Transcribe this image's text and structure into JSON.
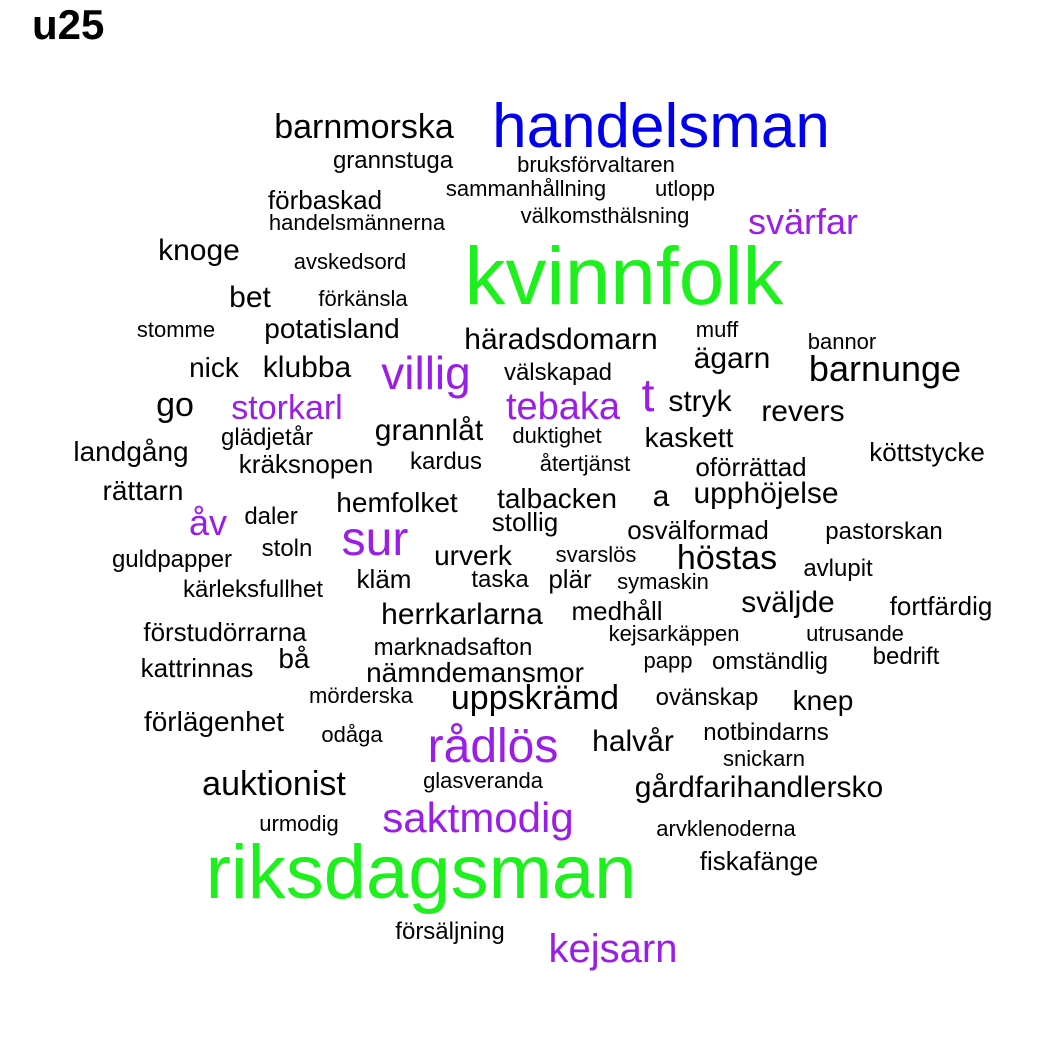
{
  "title": "u25",
  "colors": {
    "black": "#000000",
    "blue": "#0000ee",
    "green": "#1ef01e",
    "purple": "#9b1de8"
  },
  "words": [
    {
      "text": "barnmorska",
      "color": "black"
    },
    {
      "text": "handelsman",
      "color": "blue"
    },
    {
      "text": "grannstuga",
      "color": "black"
    },
    {
      "text": "bruksförvaltaren",
      "color": "black"
    },
    {
      "text": "sammanhållning",
      "color": "black"
    },
    {
      "text": "utlopp",
      "color": "black"
    },
    {
      "text": "förbaskad",
      "color": "black"
    },
    {
      "text": "handelsmännerna",
      "color": "black"
    },
    {
      "text": "välkomsthälsning",
      "color": "black"
    },
    {
      "text": "svärfar",
      "color": "purple"
    },
    {
      "text": "knoge",
      "color": "black"
    },
    {
      "text": "avskedsord",
      "color": "black"
    },
    {
      "text": "kvinnfolk",
      "color": "green"
    },
    {
      "text": "bet",
      "color": "black"
    },
    {
      "text": "förkänsla",
      "color": "black"
    },
    {
      "text": "stomme",
      "color": "black"
    },
    {
      "text": "potatisland",
      "color": "black"
    },
    {
      "text": "häradsdomarn",
      "color": "black"
    },
    {
      "text": "muff",
      "color": "black"
    },
    {
      "text": "bannor",
      "color": "black"
    },
    {
      "text": "ägarn",
      "color": "black"
    },
    {
      "text": "nick",
      "color": "black"
    },
    {
      "text": "klubba",
      "color": "black"
    },
    {
      "text": "villig",
      "color": "purple"
    },
    {
      "text": "välskapad",
      "color": "black"
    },
    {
      "text": "barnunge",
      "color": "black"
    },
    {
      "text": "t",
      "color": "purple"
    },
    {
      "text": "go",
      "color": "black"
    },
    {
      "text": "storkarl",
      "color": "purple"
    },
    {
      "text": "tebaka",
      "color": "purple"
    },
    {
      "text": "stryk",
      "color": "black"
    },
    {
      "text": "revers",
      "color": "black"
    },
    {
      "text": "grannlåt",
      "color": "black"
    },
    {
      "text": "glädjetår",
      "color": "black"
    },
    {
      "text": "duktighet",
      "color": "black"
    },
    {
      "text": "kaskett",
      "color": "black"
    },
    {
      "text": "landgång",
      "color": "black"
    },
    {
      "text": "köttstycke",
      "color": "black"
    },
    {
      "text": "kräksnopen",
      "color": "black"
    },
    {
      "text": "kardus",
      "color": "black"
    },
    {
      "text": "återtjänst",
      "color": "black"
    },
    {
      "text": "oförrättad",
      "color": "black"
    },
    {
      "text": "rättarn",
      "color": "black"
    },
    {
      "text": "hemfolket",
      "color": "black"
    },
    {
      "text": "talbacken",
      "color": "black"
    },
    {
      "text": "a",
      "color": "black"
    },
    {
      "text": "upphöjelse",
      "color": "black"
    },
    {
      "text": "åv",
      "color": "purple"
    },
    {
      "text": "daler",
      "color": "black"
    },
    {
      "text": "sur",
      "color": "purple"
    },
    {
      "text": "stollig",
      "color": "black"
    },
    {
      "text": "osvälformad",
      "color": "black"
    },
    {
      "text": "pastorskan",
      "color": "black"
    },
    {
      "text": "guldpapper",
      "color": "black"
    },
    {
      "text": "stoln",
      "color": "black"
    },
    {
      "text": "urverk",
      "color": "black"
    },
    {
      "text": "svarslös",
      "color": "black"
    },
    {
      "text": "höstas",
      "color": "black"
    },
    {
      "text": "avlupit",
      "color": "black"
    },
    {
      "text": "kläm",
      "color": "black"
    },
    {
      "text": "taska",
      "color": "black"
    },
    {
      "text": "plär",
      "color": "black"
    },
    {
      "text": "symaskin",
      "color": "black"
    },
    {
      "text": "kärleksfullhet",
      "color": "black"
    },
    {
      "text": "sväljde",
      "color": "black"
    },
    {
      "text": "fortfärdig",
      "color": "black"
    },
    {
      "text": "herrkarlarna",
      "color": "black"
    },
    {
      "text": "medhåll",
      "color": "black"
    },
    {
      "text": "förstudörrarna",
      "color": "black"
    },
    {
      "text": "kejsarkäppen",
      "color": "black"
    },
    {
      "text": "utrusande",
      "color": "black"
    },
    {
      "text": "marknadsafton",
      "color": "black"
    },
    {
      "text": "bå",
      "color": "black"
    },
    {
      "text": "bedrift",
      "color": "black"
    },
    {
      "text": "kattrinnas",
      "color": "black"
    },
    {
      "text": "papp",
      "color": "black"
    },
    {
      "text": "omständlig",
      "color": "black"
    },
    {
      "text": "nämndemansmor",
      "color": "black"
    },
    {
      "text": "mörderska",
      "color": "black"
    },
    {
      "text": "uppskrämd",
      "color": "black"
    },
    {
      "text": "ovänskap",
      "color": "black"
    },
    {
      "text": "knep",
      "color": "black"
    },
    {
      "text": "förlägenhet",
      "color": "black"
    },
    {
      "text": "odåga",
      "color": "black"
    },
    {
      "text": "rådlös",
      "color": "purple"
    },
    {
      "text": "halvår",
      "color": "black"
    },
    {
      "text": "notbindarns",
      "color": "black"
    },
    {
      "text": "snickarn",
      "color": "black"
    },
    {
      "text": "auktionist",
      "color": "black"
    },
    {
      "text": "glasveranda",
      "color": "black"
    },
    {
      "text": "gårdfarihandlersko",
      "color": "black"
    },
    {
      "text": "saktmodig",
      "color": "purple"
    },
    {
      "text": "urmodig",
      "color": "black"
    },
    {
      "text": "arvklenoderna",
      "color": "black"
    },
    {
      "text": "riksdagsman",
      "color": "green"
    },
    {
      "text": "fiskafänge",
      "color": "black"
    },
    {
      "text": "försäljning",
      "color": "black"
    },
    {
      "text": "kejsarn",
      "color": "purple"
    }
  ]
}
